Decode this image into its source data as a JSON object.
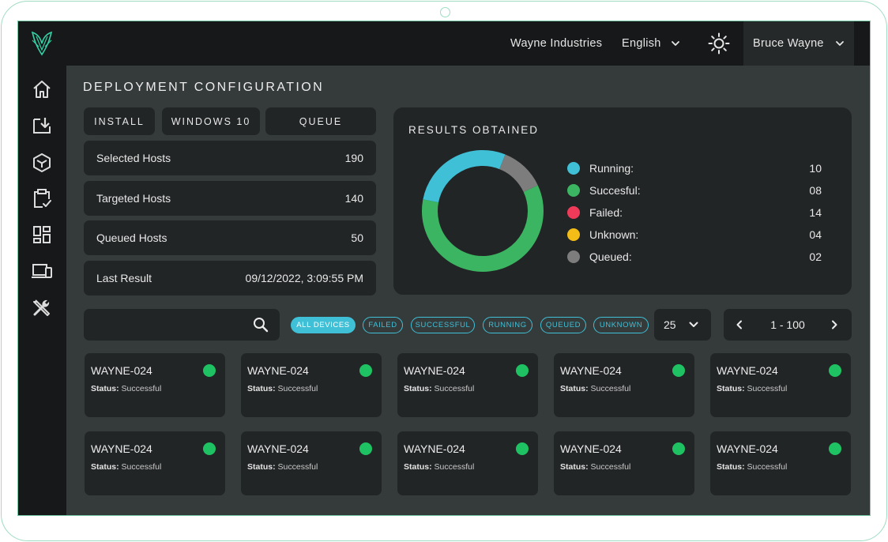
{
  "header": {
    "company": "Wayne Industries",
    "language": "English",
    "user": "Bruce Wayne",
    "theme_icon": "sun-icon"
  },
  "sidebar": {
    "items": [
      {
        "icon": "home-icon"
      },
      {
        "icon": "download-tray-icon"
      },
      {
        "icon": "cube-icon"
      },
      {
        "icon": "clipboard-check-icon"
      },
      {
        "icon": "dashboard-grid-icon"
      },
      {
        "icon": "devices-icon"
      },
      {
        "icon": "tools-icon"
      }
    ]
  },
  "page": {
    "title": "DEPLOYMENT CONFIGURATION"
  },
  "config_buttons": [
    {
      "label": "INSTALL"
    },
    {
      "label": "WINDOWS 10"
    },
    {
      "label": "QUEUE"
    }
  ],
  "stats": [
    {
      "label": "Selected Hosts",
      "value": "190"
    },
    {
      "label": "Targeted Hosts",
      "value": "140"
    },
    {
      "label": "Queued Hosts",
      "value": "50"
    },
    {
      "label": "Last Result",
      "value": "09/12/2022, 3:09:55 PM"
    }
  ],
  "results": {
    "title": "RESULTS OBTAINED",
    "legend": [
      {
        "label": "Running:",
        "value": "10",
        "color": "#3fc0d6"
      },
      {
        "label": "Succesful:",
        "value": "08",
        "color": "#3cb562"
      },
      {
        "label": "Failed:",
        "value": "14",
        "color": "#ef3b59"
      },
      {
        "label": "Unknown:",
        "value": "04",
        "color": "#f4bc16"
      },
      {
        "label": "Queued:",
        "value": "02",
        "color": "#7d7d7d"
      }
    ]
  },
  "chart_data": {
    "type": "pie",
    "categories": [
      "Succesful",
      "Running",
      "Queued"
    ],
    "values": [
      60,
      28,
      12
    ],
    "colors": [
      "#3cb562",
      "#3fc0d6",
      "#7d7d7d"
    ]
  },
  "filters": {
    "search_placeholder": "",
    "chips": [
      {
        "label": "ALL DEVICES",
        "active": true
      },
      {
        "label": "FAILED",
        "active": false
      },
      {
        "label": "SUCCESSFUL",
        "active": false
      },
      {
        "label": "RUNNING",
        "active": false
      },
      {
        "label": "QUEUED",
        "active": false
      },
      {
        "label": "UNKNOWN",
        "active": false
      }
    ],
    "per_page": "25",
    "page_range": "1 - 100"
  },
  "devices": [
    {
      "name": "WAYNE-024",
      "status_label": "Status:",
      "status": "Successful",
      "dot_color": "#1fc262"
    },
    {
      "name": "WAYNE-024",
      "status_label": "Status:",
      "status": "Successful",
      "dot_color": "#1fc262"
    },
    {
      "name": "WAYNE-024",
      "status_label": "Status:",
      "status": "Successful",
      "dot_color": "#1fc262"
    },
    {
      "name": "WAYNE-024",
      "status_label": "Status:",
      "status": "Successful",
      "dot_color": "#1fc262"
    },
    {
      "name": "WAYNE-024",
      "status_label": "Status:",
      "status": "Successful",
      "dot_color": "#1fc262"
    },
    {
      "name": "WAYNE-024",
      "status_label": "Status:",
      "status": "Successful",
      "dot_color": "#1fc262"
    },
    {
      "name": "WAYNE-024",
      "status_label": "Status:",
      "status": "Successful",
      "dot_color": "#1fc262"
    },
    {
      "name": "WAYNE-024",
      "status_label": "Status:",
      "status": "Successful",
      "dot_color": "#1fc262"
    },
    {
      "name": "WAYNE-024",
      "status_label": "Status:",
      "status": "Successful",
      "dot_color": "#1fc262"
    },
    {
      "name": "WAYNE-024",
      "status_label": "Status:",
      "status": "Successful",
      "dot_color": "#1fc262"
    }
  ]
}
